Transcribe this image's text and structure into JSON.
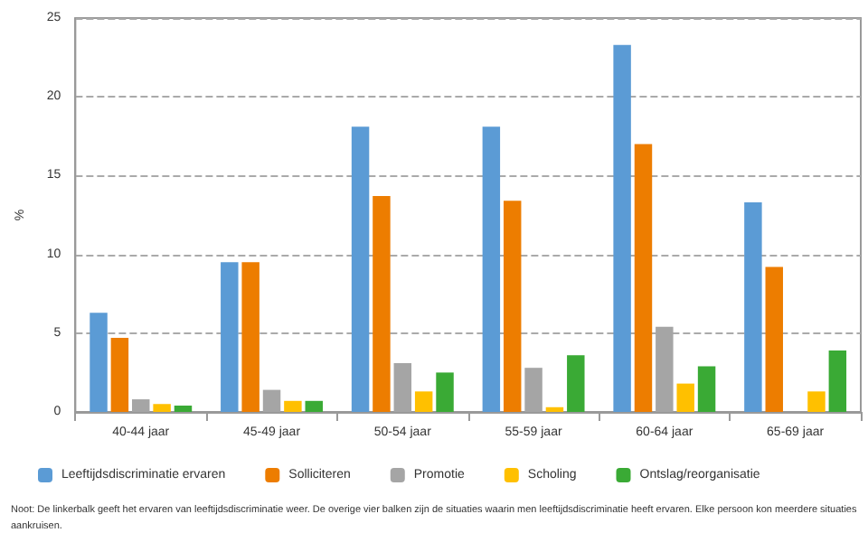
{
  "chart_data": {
    "type": "bar",
    "ylabel": "%",
    "categories": [
      "40-44 jaar",
      "45-49 jaar",
      "50-54 jaar",
      "55-59 jaar",
      "60-64 jaar",
      "65-69 jaar"
    ],
    "series": [
      {
        "name": "Leeftijdsdiscriminatie ervaren",
        "color": "#5b9bd5",
        "values": [
          6.3,
          9.5,
          18.1,
          18.1,
          23.3,
          13.3
        ]
      },
      {
        "name": "Solliciteren",
        "color": "#ed7d00",
        "values": [
          4.7,
          9.5,
          13.7,
          13.4,
          17.0,
          9.2
        ]
      },
      {
        "name": "Promotie",
        "color": "#a5a5a5",
        "values": [
          0.8,
          1.4,
          3.1,
          2.8,
          5.4,
          0
        ]
      },
      {
        "name": "Scholing",
        "color": "#ffc000",
        "values": [
          0.5,
          0.7,
          1.3,
          0.3,
          1.8,
          1.3
        ]
      },
      {
        "name": "Ontslag/reorganisatie",
        "color": "#3aaa35",
        "values": [
          0.4,
          0.7,
          2.5,
          3.6,
          2.9,
          3.9
        ]
      }
    ],
    "ylim": [
      0,
      25
    ],
    "yticks": [
      0,
      5,
      10,
      15,
      20,
      25
    ],
    "grid": "y",
    "legend": "bottom",
    "annotations": [
      "Noot: De linkerbalk geeft het ervaren van leeftijdsdiscriminatie weer. De overige vier balken zijn de situaties waarin men leeftijdsdiscriminatie heeft ervaren. Elke persoon kon meerdere situaties aankruisen."
    ]
  }
}
